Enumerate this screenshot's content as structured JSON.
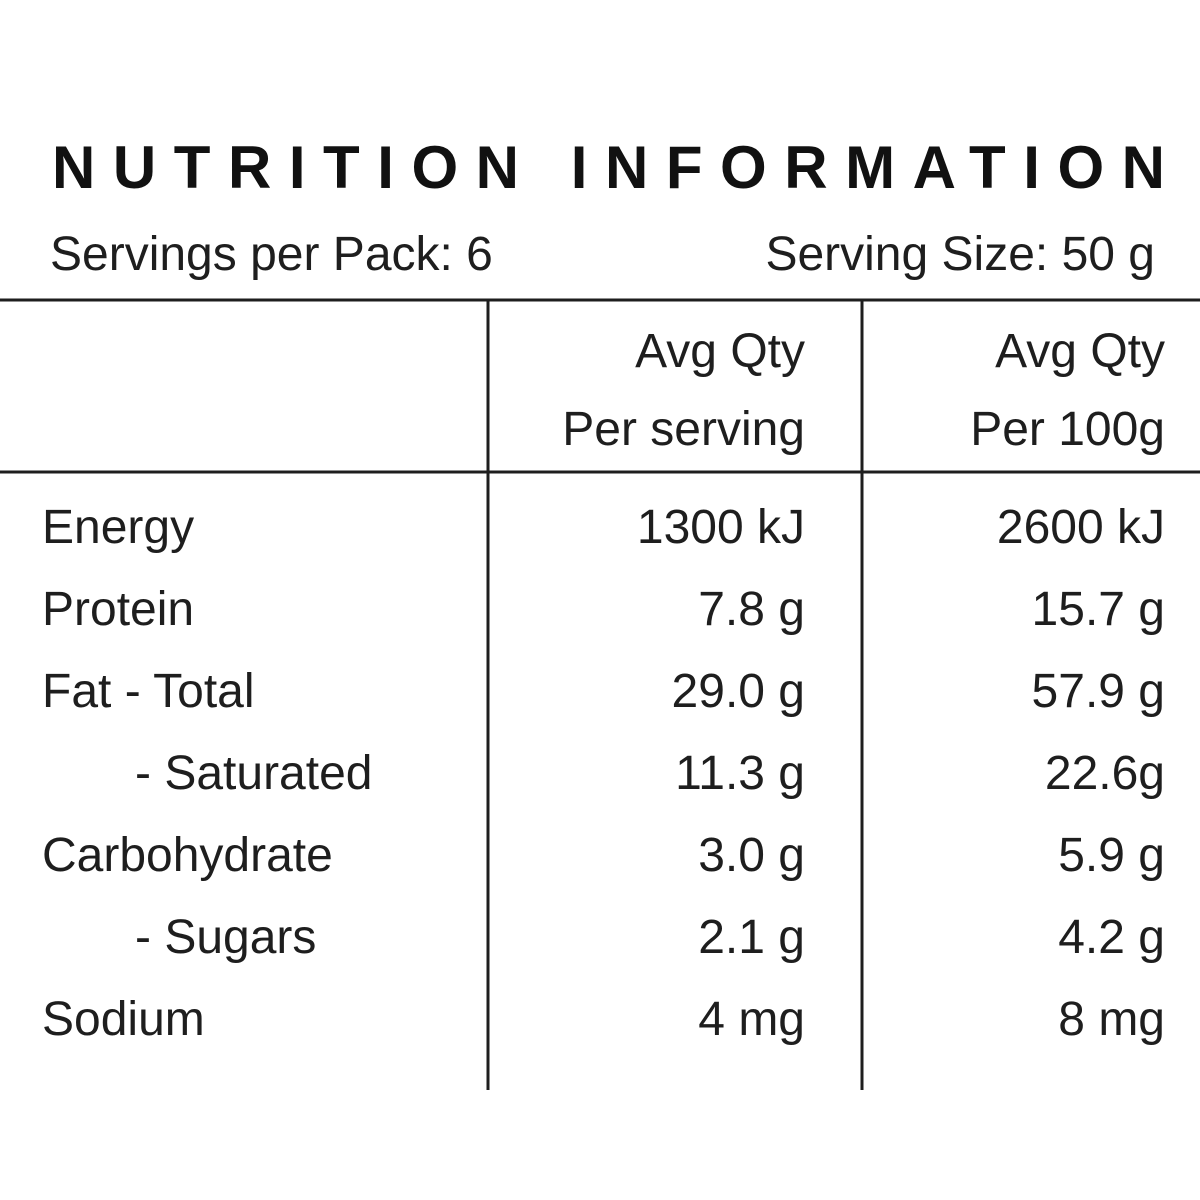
{
  "header": {
    "title": "NUTRITION INFORMATION",
    "servings_per_pack": "Servings per Pack: 6",
    "serving_size": "Serving Size: 50 g"
  },
  "table": {
    "columns": [
      [
        "Avg Qty",
        "Per serving"
      ],
      [
        "Avg Qty",
        "Per 100g"
      ]
    ],
    "rows": [
      [
        "Energy",
        "1300 kJ",
        "2600 kJ"
      ],
      [
        "Protein",
        "7.8 g",
        "15.7 g"
      ],
      [
        "Fat - Total",
        "29.0 g",
        "57.9 g"
      ],
      [
        "- Saturated",
        "11.3 g",
        "22.6g"
      ],
      [
        "Carbohydrate",
        "3.0 g",
        "5.9 g"
      ],
      [
        "- Sugars",
        "2.1 g",
        "4.2 g"
      ],
      [
        "Sodium",
        "4 mg",
        "8 mg"
      ]
    ]
  }
}
